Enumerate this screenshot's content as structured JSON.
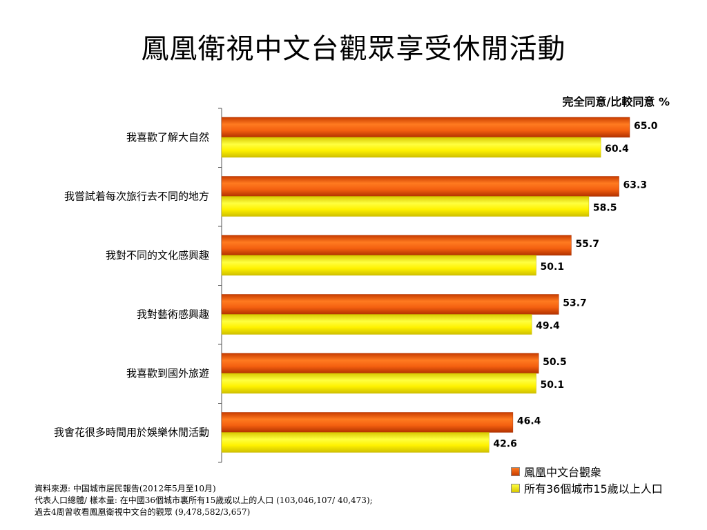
{
  "title": "鳳凰衛視中文台觀眾享受休閒活動",
  "unit_label": "完全同意/比較同意 %",
  "source_lines": [
    "資料來源: 中国城市居民報告(2012年5月至10月)",
    "代表人口總體/ 樣本量: 在中國36個城市裏所有15歲或以上的人口 (103,046,107/ 40,473);",
    "過去4周曾收看鳳凰衛視中文台的觀眾 (9,478,582/3,657)"
  ],
  "chart_data": {
    "type": "bar",
    "orientation": "horizontal",
    "categories": [
      "我喜歡了解大自然",
      "我嘗試着每次旅行去不同的地方",
      "我對不同的文化感興趣",
      "我對藝術感興趣",
      "我喜歡到國外旅遊",
      "我會花很多時間用於娛樂休閒活動"
    ],
    "series": [
      {
        "name": "鳳凰中文台觀衆",
        "color": "#e8520e",
        "values": [
          65.0,
          63.3,
          55.7,
          53.7,
          50.5,
          46.4
        ]
      },
      {
        "name": "所有36個城市15歲以上人口",
        "color": "#ffee00",
        "values": [
          60.4,
          58.5,
          50.1,
          49.4,
          50.1,
          42.6
        ]
      }
    ],
    "value_labels": [
      [
        "65.0",
        "63.3",
        "55.7",
        "53.7",
        "50.5",
        "46.4"
      ],
      [
        "60.4",
        "58.5",
        "50.1",
        "49.4",
        "50.1",
        "42.6"
      ]
    ],
    "xlim": [
      0,
      70
    ],
    "legend": "bottom-right",
    "grid": false
  }
}
